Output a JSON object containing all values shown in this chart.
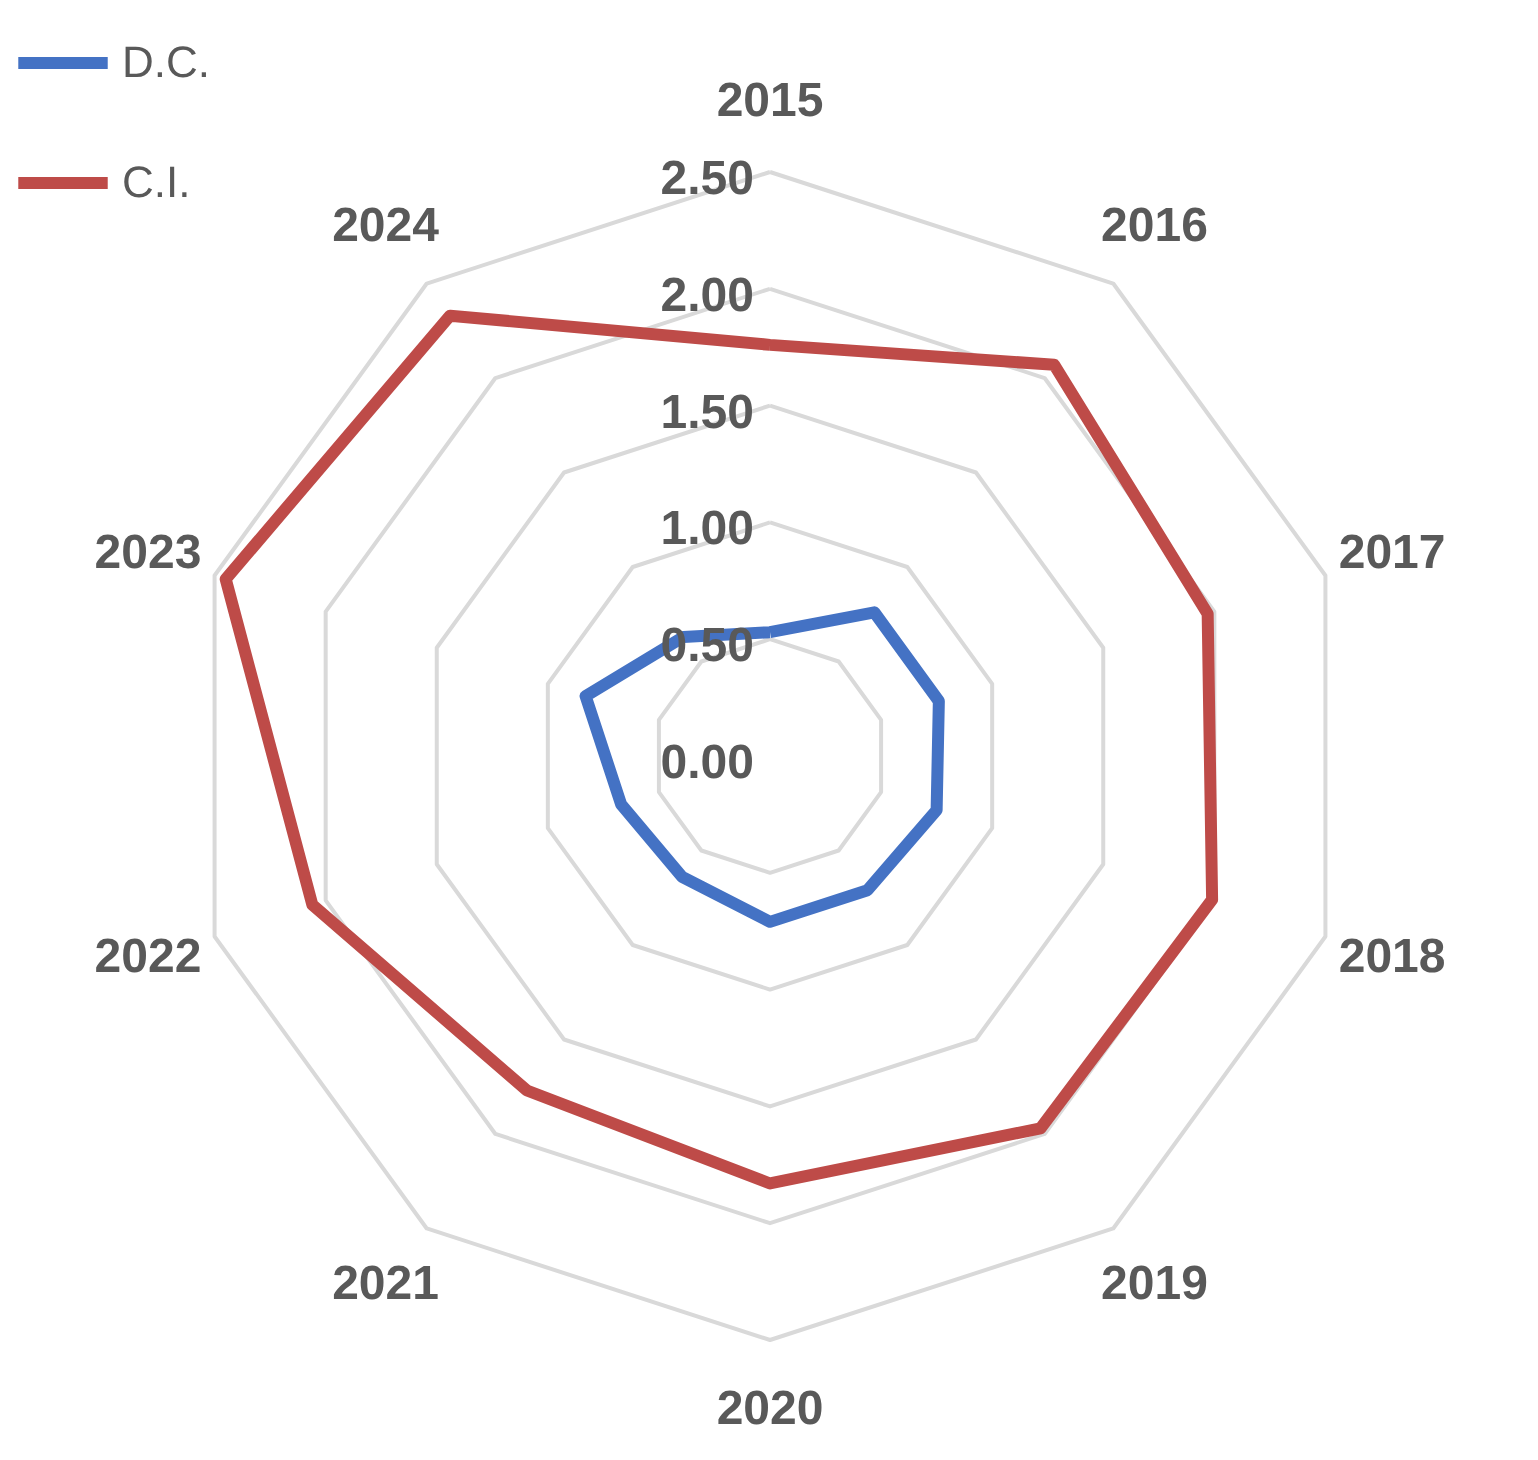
{
  "chart_data": {
    "type": "radar",
    "categories": [
      "2015",
      "2016",
      "2017",
      "2018",
      "2019",
      "2020",
      "2021",
      "2022",
      "2023",
      "2024"
    ],
    "series": [
      {
        "name": "D.C.",
        "color": "#4472c4",
        "values": [
          0.53,
          0.76,
          0.76,
          0.75,
          0.71,
          0.71,
          0.64,
          0.67,
          0.83,
          0.63
        ]
      },
      {
        "name": "C.I.",
        "color": "#be4b48",
        "values": [
          1.76,
          2.07,
          1.97,
          1.99,
          1.97,
          1.83,
          1.77,
          2.06,
          2.45,
          2.33
        ]
      }
    ],
    "ylim": [
      0,
      2.5
    ],
    "yticks": [
      {
        "value": 0,
        "label": "0.00"
      },
      {
        "value": 0.5,
        "label": "0.50"
      },
      {
        "value": 1,
        "label": "1.00"
      },
      {
        "value": 1.5,
        "label": "1.50"
      },
      {
        "value": 2,
        "label": "2.00"
      },
      {
        "value": 2.5,
        "label": "2.50"
      }
    ],
    "grid": true,
    "legend": "top left"
  }
}
